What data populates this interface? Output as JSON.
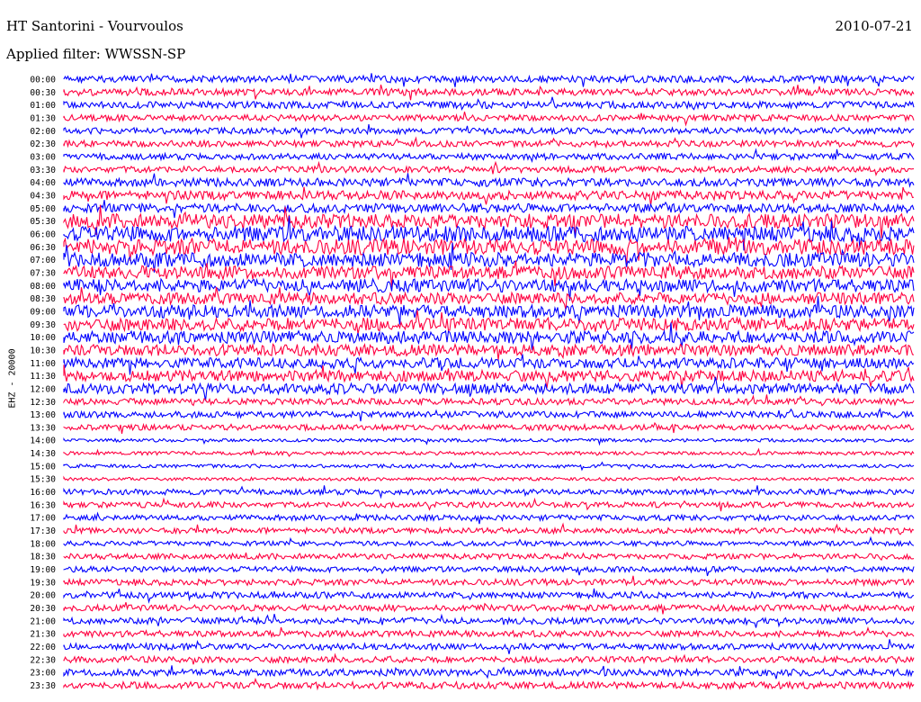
{
  "header": {
    "title": "HT Santorini - Vourvoulos",
    "date": "2010-07-21",
    "filter": "Applied filter: WWSSN-SP"
  },
  "chart_data": {
    "type": "line",
    "title": "HT Santorini - Vourvoulos",
    "subtitle": "Applied filter: WWSSN-SP",
    "ylabel": "EHZ - 20000",
    "xlabel": "",
    "grid": false,
    "legend": "none",
    "colors": [
      "#0000ff",
      "#ff0040"
    ],
    "rows": [
      {
        "label": "00:00",
        "color": "#0000ff",
        "level": 0.35
      },
      {
        "label": "00:30",
        "color": "#ff0040",
        "level": 0.35
      },
      {
        "label": "01:00",
        "color": "#0000ff",
        "level": 0.35
      },
      {
        "label": "01:30",
        "color": "#ff0040",
        "level": 0.3
      },
      {
        "label": "02:00",
        "color": "#0000ff",
        "level": 0.3
      },
      {
        "label": "02:30",
        "color": "#ff0040",
        "level": 0.3
      },
      {
        "label": "03:00",
        "color": "#0000ff",
        "level": 0.3
      },
      {
        "label": "03:30",
        "color": "#ff0040",
        "level": 0.3
      },
      {
        "label": "04:00",
        "color": "#0000ff",
        "level": 0.45
      },
      {
        "label": "04:30",
        "color": "#ff0040",
        "level": 0.5
      },
      {
        "label": "05:00",
        "color": "#0000ff",
        "level": 0.5
      },
      {
        "label": "05:30",
        "color": "#ff0040",
        "level": 0.9
      },
      {
        "label": "06:00",
        "color": "#0000ff",
        "level": 1.0
      },
      {
        "label": "06:30",
        "color": "#ff0040",
        "level": 1.0
      },
      {
        "label": "07:00",
        "color": "#0000ff",
        "level": 0.9
      },
      {
        "label": "07:30",
        "color": "#ff0040",
        "level": 0.8
      },
      {
        "label": "08:00",
        "color": "#0000ff",
        "level": 0.8
      },
      {
        "label": "08:30",
        "color": "#ff0040",
        "level": 0.7
      },
      {
        "label": "09:00",
        "color": "#0000ff",
        "level": 0.8
      },
      {
        "label": "09:30",
        "color": "#ff0040",
        "level": 0.8
      },
      {
        "label": "10:00",
        "color": "#0000ff",
        "level": 0.75
      },
      {
        "label": "10:30",
        "color": "#ff0040",
        "level": 0.7
      },
      {
        "label": "11:00",
        "color": "#0000ff",
        "level": 0.6
      },
      {
        "label": "11:30",
        "color": "#ff0040",
        "level": 0.65
      },
      {
        "label": "12:00",
        "color": "#0000ff",
        "level": 0.6
      },
      {
        "label": "12:30",
        "color": "#ff0040",
        "level": 0.3
      },
      {
        "label": "13:00",
        "color": "#0000ff",
        "level": 0.3
      },
      {
        "label": "13:30",
        "color": "#ff0040",
        "level": 0.25
      },
      {
        "label": "14:00",
        "color": "#0000ff",
        "level": 0.08
      },
      {
        "label": "14:30",
        "color": "#ff0040",
        "level": 0.1
      },
      {
        "label": "15:00",
        "color": "#0000ff",
        "level": 0.1
      },
      {
        "label": "15:30",
        "color": "#ff0040",
        "level": 0.08
      },
      {
        "label": "16:00",
        "color": "#0000ff",
        "level": 0.25
      },
      {
        "label": "16:30",
        "color": "#ff0040",
        "level": 0.25
      },
      {
        "label": "17:00",
        "color": "#0000ff",
        "level": 0.25
      },
      {
        "label": "17:30",
        "color": "#ff0040",
        "level": 0.25
      },
      {
        "label": "18:00",
        "color": "#0000ff",
        "level": 0.2
      },
      {
        "label": "18:30",
        "color": "#ff0040",
        "level": 0.25
      },
      {
        "label": "19:00",
        "color": "#0000ff",
        "level": 0.25
      },
      {
        "label": "19:30",
        "color": "#ff0040",
        "level": 0.3
      },
      {
        "label": "20:00",
        "color": "#0000ff",
        "level": 0.3
      },
      {
        "label": "20:30",
        "color": "#ff0040",
        "level": 0.3
      },
      {
        "label": "21:00",
        "color": "#0000ff",
        "level": 0.3
      },
      {
        "label": "21:30",
        "color": "#ff0040",
        "level": 0.3
      },
      {
        "label": "22:00",
        "color": "#0000ff",
        "level": 0.3
      },
      {
        "label": "22:30",
        "color": "#ff0040",
        "level": 0.3
      },
      {
        "label": "23:00",
        "color": "#0000ff",
        "level": 0.35
      },
      {
        "label": "23:30",
        "color": "#ff0040",
        "level": 0.35
      }
    ]
  }
}
